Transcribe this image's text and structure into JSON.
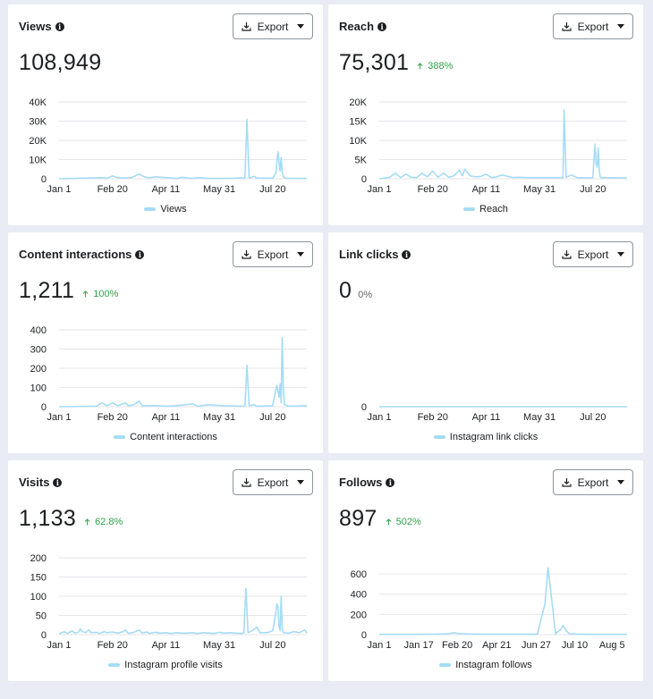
{
  "export_label": "Export",
  "colors": {
    "line": "#a6dcf5",
    "positive": "#31a24c",
    "grid": "#e4e6eb"
  },
  "cards": [
    {
      "title": "Views",
      "value": "108,949",
      "change": "",
      "legend": "Views",
      "chart_data": {
        "type": "line",
        "title": "Views",
        "series": [
          {
            "name": "Views"
          }
        ],
        "yticks": [
          0,
          10000,
          20000,
          30000,
          40000
        ],
        "ytick_labels": [
          "0",
          "10K",
          "20K",
          "30K",
          "40K"
        ],
        "ylim": [
          0,
          40000
        ],
        "xtick_labels": [
          "Jan 1",
          "Feb 20",
          "Apr 11",
          "May 31",
          "Jul 20"
        ],
        "xlim": [
          0,
          232
        ],
        "xtick_positions": [
          0,
          50,
          100,
          150,
          200
        ],
        "points": [
          [
            0,
            0
          ],
          [
            30,
            400
          ],
          [
            40,
            600
          ],
          [
            45,
            300
          ],
          [
            50,
            1500
          ],
          [
            55,
            500
          ],
          [
            62,
            400
          ],
          [
            68,
            600
          ],
          [
            75,
            2500
          ],
          [
            80,
            900
          ],
          [
            85,
            500
          ],
          [
            90,
            1000
          ],
          [
            110,
            200
          ],
          [
            115,
            800
          ],
          [
            125,
            200
          ],
          [
            130,
            600
          ],
          [
            140,
            200
          ],
          [
            155,
            200
          ],
          [
            170,
            400
          ],
          [
            174,
            400
          ],
          [
            176,
            31000
          ],
          [
            178,
            400
          ],
          [
            183,
            1200
          ],
          [
            185,
            400
          ],
          [
            200,
            300
          ],
          [
            203,
            3000
          ],
          [
            204,
            9000
          ],
          [
            205,
            14000
          ],
          [
            206,
            8000
          ],
          [
            207,
            4000
          ],
          [
            208,
            11000
          ],
          [
            209,
            4000
          ],
          [
            210,
            1000
          ],
          [
            212,
            300
          ],
          [
            232,
            200
          ]
        ]
      }
    },
    {
      "title": "Reach",
      "value": "75,301",
      "change": "388%",
      "legend": "Reach",
      "chart_data": {
        "type": "line",
        "title": "Reach",
        "series": [
          {
            "name": "Reach"
          }
        ],
        "yticks": [
          0,
          5000,
          10000,
          15000,
          20000
        ],
        "ytick_labels": [
          "0",
          "5K",
          "10K",
          "15K",
          "20K"
        ],
        "ylim": [
          0,
          20000
        ],
        "xtick_labels": [
          "Jan 1",
          "Feb 20",
          "Apr 11",
          "May 31",
          "Jul 20"
        ],
        "xlim": [
          0,
          232
        ],
        "xtick_positions": [
          0,
          50,
          100,
          150,
          200
        ],
        "points": [
          [
            0,
            0
          ],
          [
            10,
            400
          ],
          [
            15,
            1500
          ],
          [
            20,
            300
          ],
          [
            25,
            1200
          ],
          [
            30,
            400
          ],
          [
            35,
            300
          ],
          [
            40,
            1500
          ],
          [
            45,
            500
          ],
          [
            50,
            2000
          ],
          [
            55,
            400
          ],
          [
            60,
            1500
          ],
          [
            65,
            400
          ],
          [
            70,
            800
          ],
          [
            75,
            2200
          ],
          [
            78,
            800
          ],
          [
            80,
            2500
          ],
          [
            85,
            800
          ],
          [
            90,
            500
          ],
          [
            95,
            600
          ],
          [
            100,
            1200
          ],
          [
            105,
            300
          ],
          [
            110,
            500
          ],
          [
            115,
            1000
          ],
          [
            125,
            300
          ],
          [
            130,
            400
          ],
          [
            140,
            300
          ],
          [
            150,
            300
          ],
          [
            170,
            300
          ],
          [
            172,
            300
          ],
          [
            173,
            18000
          ],
          [
            175,
            400
          ],
          [
            180,
            1000
          ],
          [
            185,
            300
          ],
          [
            195,
            200
          ],
          [
            200,
            300
          ],
          [
            201,
            5000
          ],
          [
            202,
            9000
          ],
          [
            203,
            4000
          ],
          [
            204,
            3000
          ],
          [
            205,
            8000
          ],
          [
            206,
            2000
          ],
          [
            207,
            300
          ],
          [
            232,
            200
          ]
        ]
      }
    },
    {
      "title": "Content interactions",
      "value": "1,211",
      "change": "100%",
      "legend": "Content interactions",
      "chart_data": {
        "type": "line",
        "title": "Content interactions",
        "series": [
          {
            "name": "Content interactions"
          }
        ],
        "yticks": [
          0,
          100,
          200,
          300,
          400
        ],
        "ytick_labels": [
          "0",
          "100",
          "200",
          "300",
          "400"
        ],
        "ylim": [
          0,
          400
        ],
        "xtick_labels": [
          "Jan 1",
          "Feb 20",
          "Apr 11",
          "May 31",
          "Jul 20"
        ],
        "xlim": [
          0,
          232
        ],
        "xtick_positions": [
          0,
          50,
          100,
          150,
          200
        ],
        "points": [
          [
            0,
            0
          ],
          [
            35,
            3
          ],
          [
            40,
            20
          ],
          [
            45,
            5
          ],
          [
            50,
            20
          ],
          [
            55,
            5
          ],
          [
            62,
            20
          ],
          [
            65,
            5
          ],
          [
            70,
            10
          ],
          [
            75,
            30
          ],
          [
            78,
            5
          ],
          [
            90,
            5
          ],
          [
            100,
            3
          ],
          [
            110,
            5
          ],
          [
            125,
            15
          ],
          [
            130,
            3
          ],
          [
            140,
            10
          ],
          [
            155,
            5
          ],
          [
            170,
            3
          ],
          [
            174,
            3
          ],
          [
            176,
            215
          ],
          [
            178,
            5
          ],
          [
            183,
            10
          ],
          [
            185,
            3
          ],
          [
            200,
            5
          ],
          [
            203,
            90
          ],
          [
            204,
            110
          ],
          [
            205,
            80
          ],
          [
            206,
            50
          ],
          [
            207,
            120
          ],
          [
            208,
            20
          ],
          [
            209,
            360
          ],
          [
            210,
            100
          ],
          [
            211,
            10
          ],
          [
            215,
            3
          ],
          [
            232,
            5
          ]
        ]
      }
    },
    {
      "title": "Link clicks",
      "value": "0",
      "change": "0%",
      "legend": "Instagram link clicks",
      "chart_data": {
        "type": "line",
        "title": "Link clicks",
        "series": [
          {
            "name": "Instagram link clicks"
          }
        ],
        "yticks": [
          0
        ],
        "ytick_labels": [
          "0"
        ],
        "ylim": [
          0,
          1
        ],
        "xtick_labels": [
          "Jan 1",
          "Feb 20",
          "Apr 11",
          "May 31",
          "Jul 20"
        ],
        "xlim": [
          0,
          232
        ],
        "xtick_positions": [
          0,
          50,
          100,
          150,
          200
        ],
        "points": [
          [
            0,
            0
          ],
          [
            232,
            0
          ]
        ]
      }
    },
    {
      "title": "Visits",
      "value": "1,133",
      "change": "62.8%",
      "legend": "Instagram profile visits",
      "chart_data": {
        "type": "line",
        "title": "Visits",
        "series": [
          {
            "name": "Instagram profile visits"
          }
        ],
        "yticks": [
          0,
          50,
          100,
          150,
          200
        ],
        "ytick_labels": [
          "0",
          "50",
          "100",
          "150",
          "200"
        ],
        "ylim": [
          0,
          200
        ],
        "xtick_labels": [
          "Jan 1",
          "Feb 20",
          "Apr 11",
          "May 31",
          "Jul 20"
        ],
        "xlim": [
          0,
          232
        ],
        "xtick_positions": [
          0,
          50,
          100,
          150,
          200
        ],
        "points": [
          [
            0,
            2
          ],
          [
            5,
            8
          ],
          [
            8,
            3
          ],
          [
            12,
            10
          ],
          [
            15,
            4
          ],
          [
            18,
            6
          ],
          [
            20,
            15
          ],
          [
            22,
            8
          ],
          [
            25,
            5
          ],
          [
            28,
            12
          ],
          [
            30,
            5
          ],
          [
            35,
            6
          ],
          [
            38,
            3
          ],
          [
            42,
            8
          ],
          [
            45,
            5
          ],
          [
            50,
            7
          ],
          [
            55,
            4
          ],
          [
            60,
            8
          ],
          [
            62,
            12
          ],
          [
            65,
            3
          ],
          [
            70,
            6
          ],
          [
            75,
            12
          ],
          [
            78,
            4
          ],
          [
            82,
            7
          ],
          [
            85,
            3
          ],
          [
            90,
            6
          ],
          [
            95,
            4
          ],
          [
            100,
            5
          ],
          [
            105,
            3
          ],
          [
            110,
            5
          ],
          [
            115,
            4
          ],
          [
            120,
            4
          ],
          [
            125,
            5
          ],
          [
            130,
            3
          ],
          [
            135,
            5
          ],
          [
            140,
            4
          ],
          [
            145,
            3
          ],
          [
            150,
            6
          ],
          [
            155,
            4
          ],
          [
            160,
            5
          ],
          [
            165,
            4
          ],
          [
            170,
            3
          ],
          [
            173,
            4
          ],
          [
            175,
            120
          ],
          [
            177,
            5
          ],
          [
            182,
            12
          ],
          [
            185,
            20
          ],
          [
            188,
            5
          ],
          [
            195,
            5
          ],
          [
            200,
            10
          ],
          [
            202,
            40
          ],
          [
            203,
            60
          ],
          [
            204,
            80
          ],
          [
            205,
            70
          ],
          [
            206,
            20
          ],
          [
            207,
            10
          ],
          [
            208,
            100
          ],
          [
            209,
            20
          ],
          [
            210,
            5
          ],
          [
            215,
            4
          ],
          [
            220,
            8
          ],
          [
            225,
            5
          ],
          [
            230,
            12
          ],
          [
            232,
            4
          ]
        ]
      }
    },
    {
      "title": "Follows",
      "value": "897",
      "change": "502%",
      "legend": "Instagram follows",
      "chart_data": {
        "type": "line",
        "title": "Follows",
        "series": [
          {
            "name": "Instagram follows"
          }
        ],
        "yticks": [
          0,
          200,
          400,
          600
        ],
        "ytick_labels": [
          "0",
          "200",
          "400",
          "600"
        ],
        "ylim": [
          0,
          760
        ],
        "xtick_labels": [
          "Jan 1",
          "Jan 17",
          "Feb 20",
          "Apr 21",
          "Jun 27",
          "Jul 10",
          "Aug 5"
        ],
        "xlim": [
          0,
          232
        ],
        "xtick_positions": [
          0,
          37,
          73,
          110,
          147,
          183,
          218
        ],
        "points": [
          [
            0,
            3
          ],
          [
            30,
            3
          ],
          [
            50,
            4
          ],
          [
            65,
            8
          ],
          [
            70,
            20
          ],
          [
            75,
            10
          ],
          [
            90,
            5
          ],
          [
            140,
            5
          ],
          [
            148,
            5
          ],
          [
            155,
            300
          ],
          [
            158,
            660
          ],
          [
            162,
            300
          ],
          [
            165,
            10
          ],
          [
            170,
            50
          ],
          [
            172,
            90
          ],
          [
            175,
            40
          ],
          [
            178,
            10
          ],
          [
            185,
            5
          ],
          [
            200,
            3
          ],
          [
            232,
            3
          ]
        ]
      }
    }
  ]
}
